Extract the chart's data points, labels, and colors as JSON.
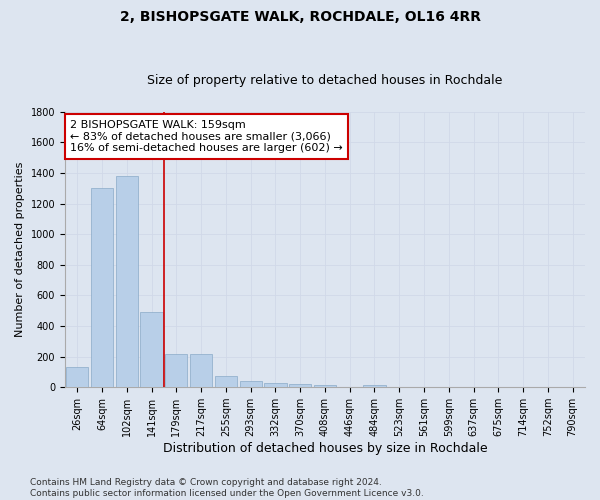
{
  "title": "2, BISHOPSGATE WALK, ROCHDALE, OL16 4RR",
  "subtitle": "Size of property relative to detached houses in Rochdale",
  "xlabel": "Distribution of detached houses by size in Rochdale",
  "ylabel": "Number of detached properties",
  "categories": [
    "26sqm",
    "64sqm",
    "102sqm",
    "141sqm",
    "179sqm",
    "217sqm",
    "255sqm",
    "293sqm",
    "332sqm",
    "370sqm",
    "408sqm",
    "446sqm",
    "484sqm",
    "523sqm",
    "561sqm",
    "599sqm",
    "637sqm",
    "675sqm",
    "714sqm",
    "752sqm",
    "790sqm"
  ],
  "values": [
    130,
    1300,
    1380,
    490,
    220,
    220,
    75,
    40,
    25,
    20,
    15,
    0,
    15,
    0,
    0,
    0,
    0,
    0,
    0,
    0,
    0
  ],
  "bar_color": "#b8cfe8",
  "bar_edge_color": "#8aaac8",
  "grid_color": "#d0d8e8",
  "background_color": "#dde5f0",
  "vline_x": 3.5,
  "vline_color": "#cc0000",
  "annotation_text": "2 BISHOPSGATE WALK: 159sqm\n← 83% of detached houses are smaller (3,066)\n16% of semi-detached houses are larger (602) →",
  "annotation_box_facecolor": "#ffffff",
  "annotation_box_edge": "#cc0000",
  "ylim": [
    0,
    1800
  ],
  "yticks": [
    0,
    200,
    400,
    600,
    800,
    1000,
    1200,
    1400,
    1600,
    1800
  ],
  "footer": "Contains HM Land Registry data © Crown copyright and database right 2024.\nContains public sector information licensed under the Open Government Licence v3.0.",
  "title_fontsize": 10,
  "subtitle_fontsize": 9,
  "xlabel_fontsize": 9,
  "ylabel_fontsize": 8,
  "tick_fontsize": 7,
  "annotation_fontsize": 8,
  "footer_fontsize": 6.5
}
